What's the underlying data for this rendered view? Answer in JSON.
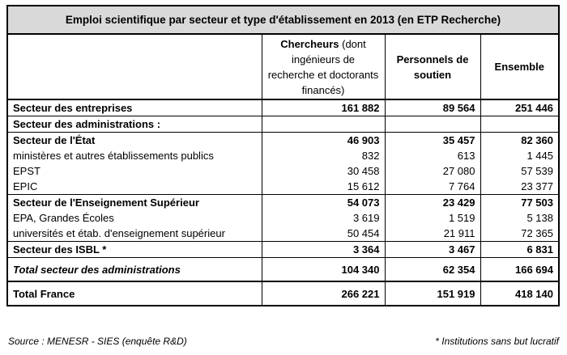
{
  "title": "Emploi scientifique par secteur et type d'établissement en 2013 (en ETP Recherche)",
  "headers": {
    "col1_bold": "Chercheurs",
    "col1_rest": " (dont ingénieurs de recherche et doctorants financés)",
    "col2": "Personnels de soutien",
    "col3": "Ensemble"
  },
  "rows": [
    {
      "label": "Secteur des entreprises",
      "v1": "161 882",
      "v2": "89 564",
      "v3": "251 446"
    },
    {
      "label": "Secteur des administrations :",
      "v1": "",
      "v2": "",
      "v3": ""
    },
    {
      "label": "Secteur de l'État",
      "v1": "46 903",
      "v2": "35 457",
      "v3": "82 360"
    },
    {
      "label": "ministères et autres établissements publics",
      "v1": "832",
      "v2": "613",
      "v3": "1 445"
    },
    {
      "label": "EPST",
      "v1": "30 458",
      "v2": "27 080",
      "v3": "57 539"
    },
    {
      "label": "EPIC",
      "v1": "15 612",
      "v2": "7 764",
      "v3": "23 377"
    },
    {
      "label": "Secteur de l'Enseignement Supérieur",
      "v1": "54 073",
      "v2": "23 429",
      "v3": "77 503"
    },
    {
      "label": "EPA, Grandes Écoles",
      "v1": "3 619",
      "v2": "1 519",
      "v3": "5 138"
    },
    {
      "label": "universités et étab. d'enseignement supérieur",
      "v1": "50 454",
      "v2": "21 911",
      "v3": "72 365"
    },
    {
      "label": "Secteur des ISBL *",
      "v1": "3 364",
      "v2": "3 467",
      "v3": "6 831"
    },
    {
      "label": "Total secteur des administrations",
      "v1": "104 340",
      "v2": "62 354",
      "v3": "166 694"
    },
    {
      "label": "Total France",
      "v1": "266 221",
      "v2": "151 919",
      "v3": "418 140"
    }
  ],
  "footer": {
    "source": "Source : MENESR - SIES (enquête R&D)",
    "note": "* Institutions sans but lucratif"
  }
}
